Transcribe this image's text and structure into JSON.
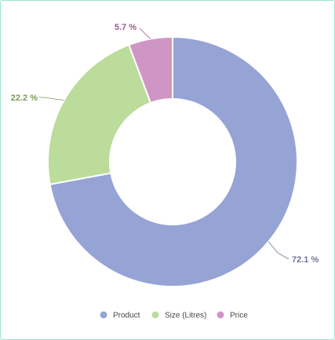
{
  "chart_data": {
    "type": "pie",
    "donut": true,
    "categories": [
      "Product",
      "Size (Litres)",
      "Price"
    ],
    "values": [
      72.1,
      22.2,
      5.7
    ],
    "labels": [
      "72.1 %",
      "22.2 %",
      "5.7 %"
    ],
    "colors": [
      "#96a3d5",
      "#bbdc9b",
      "#cf96c5"
    ],
    "label_colors": [
      "#6a74a0",
      "#7e9a5c",
      "#9a5c8e"
    ],
    "legend_position": "bottom"
  }
}
